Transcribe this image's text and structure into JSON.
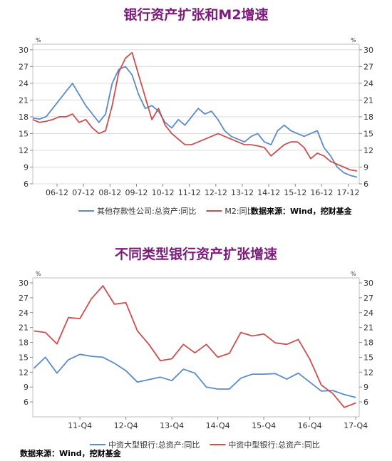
{
  "chart_data": [
    {
      "type": "line",
      "title": "银行资产扩张和M2增速",
      "y_unit": "%",
      "ylim": [
        6,
        31
      ],
      "yticks": [
        6,
        9,
        12,
        15,
        18,
        21,
        24,
        27,
        30
      ],
      "x_tick_labels": [
        "06-12",
        "07-12",
        "08-12",
        "09-12",
        "10-12",
        "11-12",
        "12-12",
        "13-12",
        "14-12",
        "15-12",
        "16-12",
        "17-12"
      ],
      "x_tick_dates": [
        "2006-12",
        "2007-12",
        "2008-12",
        "2009-12",
        "2010-12",
        "2011-12",
        "2012-12",
        "2013-12",
        "2014-12",
        "2015-12",
        "2016-12",
        "2017-12"
      ],
      "grid": true,
      "legend": "bottom",
      "source": "数据来源：Wind，挖财基金",
      "series": [
        {
          "name": "其他存款性公司:总资产:同比",
          "color": "#5b8bc9",
          "points": [
            [
              "2006-01",
              17.8
            ],
            [
              "2006-04",
              17.6
            ],
            [
              "2006-07",
              18.0
            ],
            [
              "2006-10",
              19.5
            ],
            [
              "2007-01",
              21.0
            ],
            [
              "2007-04",
              22.5
            ],
            [
              "2007-07",
              24.0
            ],
            [
              "2007-10",
              22.0
            ],
            [
              "2008-01",
              20.0
            ],
            [
              "2008-04",
              18.5
            ],
            [
              "2008-07",
              17.0
            ],
            [
              "2008-10",
              18.5
            ],
            [
              "2009-01",
              24.0
            ],
            [
              "2009-04",
              26.5
            ],
            [
              "2009-07",
              27.0
            ],
            [
              "2009-10",
              25.5
            ],
            [
              "2010-01",
              22.0
            ],
            [
              "2010-04",
              19.5
            ],
            [
              "2010-07",
              20.0
            ],
            [
              "2010-10",
              19.0
            ],
            [
              "2011-01",
              17.0
            ],
            [
              "2011-04",
              16.0
            ],
            [
              "2011-07",
              17.5
            ],
            [
              "2011-10",
              16.5
            ],
            [
              "2012-01",
              18.0
            ],
            [
              "2012-04",
              19.5
            ],
            [
              "2012-07",
              18.5
            ],
            [
              "2012-10",
              19.0
            ],
            [
              "2013-01",
              17.5
            ],
            [
              "2013-04",
              15.5
            ],
            [
              "2013-07",
              14.5
            ],
            [
              "2013-10",
              14.0
            ],
            [
              "2014-01",
              13.5
            ],
            [
              "2014-04",
              14.5
            ],
            [
              "2014-07",
              15.0
            ],
            [
              "2014-10",
              13.5
            ],
            [
              "2015-01",
              13.0
            ],
            [
              "2015-04",
              15.5
            ],
            [
              "2015-07",
              16.5
            ],
            [
              "2015-10",
              15.5
            ],
            [
              "2016-01",
              15.0
            ],
            [
              "2016-04",
              14.5
            ],
            [
              "2016-07",
              15.0
            ],
            [
              "2016-10",
              15.5
            ],
            [
              "2017-01",
              12.5
            ],
            [
              "2017-04",
              11.0
            ],
            [
              "2017-07",
              9.0
            ],
            [
              "2017-10",
              8.0
            ],
            [
              "2018-01",
              7.5
            ],
            [
              "2018-04",
              7.2
            ]
          ]
        },
        {
          "name": "M2:同比",
          "color": "#c9504e",
          "points": [
            [
              "2006-01",
              17.5
            ],
            [
              "2006-04",
              17.0
            ],
            [
              "2006-07",
              17.2
            ],
            [
              "2006-10",
              17.5
            ],
            [
              "2007-01",
              18.0
            ],
            [
              "2007-04",
              18.0
            ],
            [
              "2007-07",
              18.5
            ],
            [
              "2007-10",
              17.0
            ],
            [
              "2008-01",
              17.5
            ],
            [
              "2008-04",
              16.0
            ],
            [
              "2008-07",
              15.0
            ],
            [
              "2008-10",
              15.5
            ],
            [
              "2009-01",
              20.0
            ],
            [
              "2009-04",
              26.0
            ],
            [
              "2009-07",
              28.5
            ],
            [
              "2009-10",
              29.5
            ],
            [
              "2010-01",
              25.5
            ],
            [
              "2010-04",
              21.5
            ],
            [
              "2010-07",
              17.5
            ],
            [
              "2010-10",
              19.5
            ],
            [
              "2011-01",
              16.5
            ],
            [
              "2011-04",
              15.0
            ],
            [
              "2011-07",
              14.0
            ],
            [
              "2011-10",
              13.0
            ],
            [
              "2012-01",
              13.0
            ],
            [
              "2012-04",
              13.5
            ],
            [
              "2012-07",
              14.0
            ],
            [
              "2012-10",
              14.5
            ],
            [
              "2013-01",
              15.0
            ],
            [
              "2013-04",
              14.5
            ],
            [
              "2013-07",
              14.0
            ],
            [
              "2013-10",
              13.5
            ],
            [
              "2014-01",
              13.0
            ],
            [
              "2014-04",
              13.0
            ],
            [
              "2014-07",
              12.8
            ],
            [
              "2014-10",
              12.5
            ],
            [
              "2015-01",
              11.0
            ],
            [
              "2015-04",
              12.0
            ],
            [
              "2015-07",
              13.0
            ],
            [
              "2015-10",
              13.5
            ],
            [
              "2016-01",
              13.5
            ],
            [
              "2016-04",
              12.5
            ],
            [
              "2016-07",
              10.5
            ],
            [
              "2016-10",
              11.5
            ],
            [
              "2017-01",
              11.0
            ],
            [
              "2017-04",
              10.0
            ],
            [
              "2017-07",
              9.5
            ],
            [
              "2017-10",
              9.0
            ],
            [
              "2018-01",
              8.5
            ],
            [
              "2018-04",
              8.3
            ]
          ]
        }
      ]
    },
    {
      "type": "line",
      "title": "不同类型银行资产扩张增速",
      "y_unit": "%",
      "ylim": [
        3,
        31
      ],
      "yticks": [
        6,
        9,
        12,
        15,
        18,
        21,
        24,
        27,
        30
      ],
      "x_tick_labels": [
        "11-Q4",
        "12-Q4",
        "13-Q4",
        "14-Q4",
        "15-Q4",
        "16-Q4",
        "17-Q4"
      ],
      "x_tick_quarters": [
        "2011Q4",
        "2012Q4",
        "2013Q4",
        "2014Q4",
        "2015Q4",
        "2016Q4",
        "2017Q4"
      ],
      "grid": false,
      "legend": "bottom",
      "source": "数据来源：Wind，挖财基金",
      "series": [
        {
          "name": "中资大型银行:总资产:同比",
          "color": "#5b8bc9",
          "points": [
            [
              "2010Q4",
              12.8
            ],
            [
              "2011Q1",
              15.0
            ],
            [
              "2011Q2",
              11.8
            ],
            [
              "2011Q3",
              14.5
            ],
            [
              "2011Q4",
              15.6
            ],
            [
              "2012Q1",
              15.2
            ],
            [
              "2012Q2",
              15.0
            ],
            [
              "2012Q3",
              13.8
            ],
            [
              "2012Q4",
              12.3
            ],
            [
              "2013Q1",
              10.0
            ],
            [
              "2013Q2",
              10.5
            ],
            [
              "2013Q3",
              11.0
            ],
            [
              "2013Q4",
              10.3
            ],
            [
              "2014Q1",
              12.6
            ],
            [
              "2014Q2",
              11.8
            ],
            [
              "2014Q3",
              9.0
            ],
            [
              "2014Q4",
              8.6
            ],
            [
              "2015Q1",
              8.6
            ],
            [
              "2015Q2",
              10.8
            ],
            [
              "2015Q3",
              11.6
            ],
            [
              "2015Q4",
              11.6
            ],
            [
              "2016Q1",
              11.7
            ],
            [
              "2016Q2",
              10.6
            ],
            [
              "2016Q3",
              11.8
            ],
            [
              "2016Q4",
              10.0
            ],
            [
              "2017Q1",
              8.2
            ],
            [
              "2017Q2",
              8.3
            ],
            [
              "2017Q3",
              7.5
            ],
            [
              "2017Q4",
              6.9
            ]
          ]
        },
        {
          "name": "中资中型银行:总资产:同比",
          "color": "#c9504e",
          "points": [
            [
              "2010Q4",
              20.3
            ],
            [
              "2011Q1",
              20.0
            ],
            [
              "2011Q2",
              17.7
            ],
            [
              "2011Q3",
              23.0
            ],
            [
              "2011Q4",
              22.8
            ],
            [
              "2012Q1",
              26.8
            ],
            [
              "2012Q2",
              29.4
            ],
            [
              "2012Q3",
              25.7
            ],
            [
              "2012Q4",
              26.0
            ],
            [
              "2013Q1",
              20.3
            ],
            [
              "2013Q2",
              17.6
            ],
            [
              "2013Q3",
              14.3
            ],
            [
              "2013Q4",
              14.7
            ],
            [
              "2014Q1",
              17.6
            ],
            [
              "2014Q2",
              15.9
            ],
            [
              "2014Q3",
              17.6
            ],
            [
              "2014Q4",
              15.0
            ],
            [
              "2015Q1",
              15.8
            ],
            [
              "2015Q2",
              20.0
            ],
            [
              "2015Q3",
              19.3
            ],
            [
              "2015Q4",
              19.7
            ],
            [
              "2016Q1",
              17.9
            ],
            [
              "2016Q2",
              17.6
            ],
            [
              "2016Q3",
              18.6
            ],
            [
              "2016Q4",
              14.6
            ],
            [
              "2017Q1",
              9.4
            ],
            [
              "2017Q2",
              7.7
            ],
            [
              "2017Q3",
              4.9
            ],
            [
              "2017Q4",
              5.8
            ]
          ]
        }
      ]
    }
  ]
}
